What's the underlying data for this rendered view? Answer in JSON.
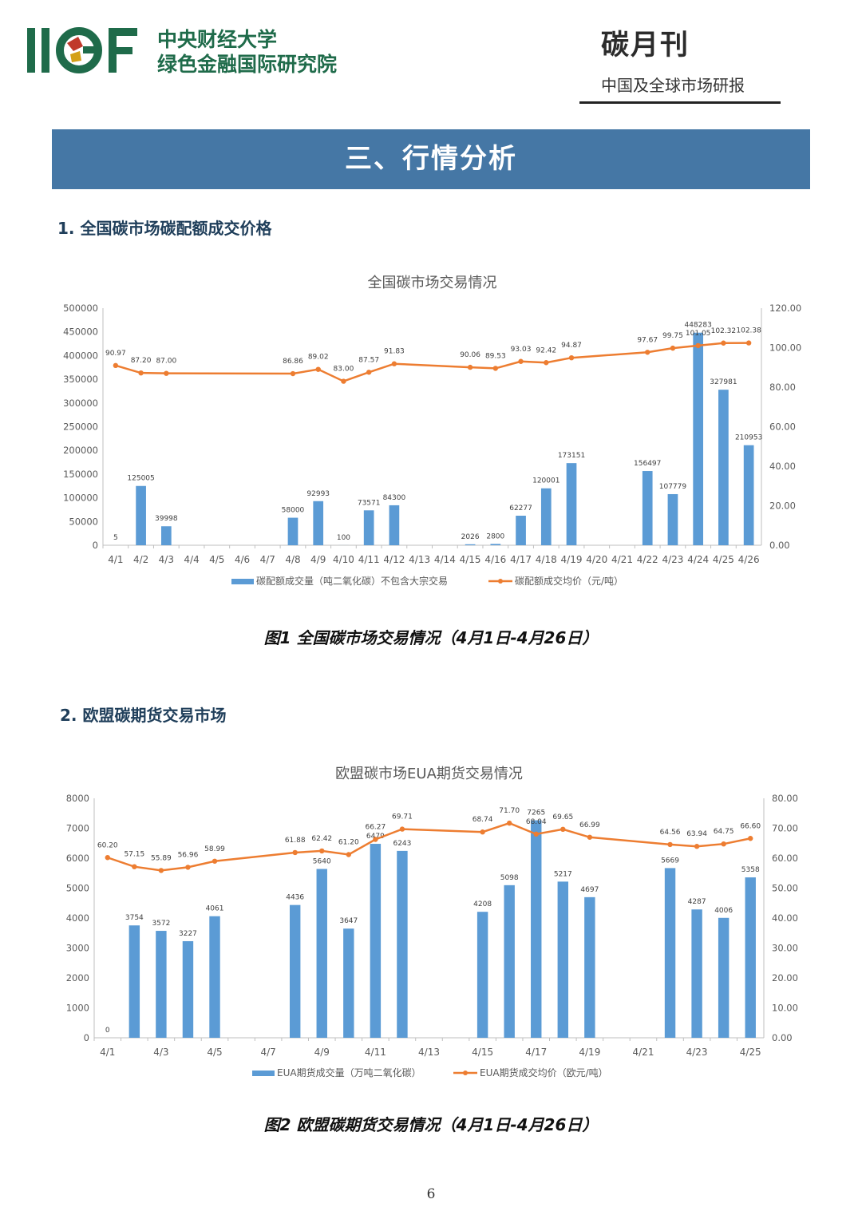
{
  "header": {
    "logo_text": "IIGF",
    "org_line1": "中央财经大学",
    "org_line2": "绿色金融国际研究院",
    "pub_title": "碳月刊",
    "pub_subtitle": "中国及全球市场研报"
  },
  "banner": {
    "title": "三、行情分析"
  },
  "section1": {
    "heading": "1. 全国碳市场碳配额成交价格",
    "caption": "图1 全国碳市场交易情况（4月1日-4月26日）"
  },
  "section2": {
    "heading": "2. 欧盟碳期货交易市场",
    "caption": "图2 欧盟碳期货交易情况（4月1日-4月26日）"
  },
  "page_number": "6",
  "colors": {
    "bar": "#5b9bd5",
    "line": "#ed7d31",
    "banner": "#4577a5"
  },
  "chart_data": [
    {
      "type": "bar",
      "title": "全国碳市场交易情况",
      "categories": [
        "4/1",
        "4/2",
        "4/3",
        "4/4",
        "4/5",
        "4/6",
        "4/7",
        "4/8",
        "4/9",
        "4/10",
        "4/11",
        "4/12",
        "4/13",
        "4/14",
        "4/15",
        "4/16",
        "4/17",
        "4/18",
        "4/19",
        "4/20",
        "4/21",
        "4/22",
        "4/23",
        "4/24",
        "4/25",
        "4/26"
      ],
      "ylim": [
        0,
        500000
      ],
      "y_ticks": [
        "0",
        "50000",
        "100000",
        "150000",
        "200000",
        "250000",
        "300000",
        "350000",
        "400000",
        "450000",
        "500000"
      ],
      "y2lim": [
        0,
        120
      ],
      "y2_ticks": [
        "0.00",
        "20.00",
        "40.00",
        "60.00",
        "80.00",
        "100.00",
        "120.00"
      ],
      "legend_position": "bottom",
      "grid": false,
      "series": [
        {
          "name": "碳配额成交量（吨二氧化碳）不包含大宗交易",
          "type": "bar",
          "axis": "left",
          "values": [
            5,
            125005,
            39998,
            null,
            null,
            null,
            null,
            58000,
            92993,
            100,
            73571,
            84300,
            null,
            null,
            2026,
            2800,
            62277,
            120001,
            173151,
            null,
            null,
            156497,
            107779,
            448283,
            327981,
            210953
          ],
          "labels": [
            "5",
            "125005",
            "39998",
            null,
            null,
            null,
            null,
            "58000",
            "92993",
            "100",
            "73571",
            "84300",
            null,
            null,
            "2026",
            "2800",
            "62277",
            "120001",
            "173151",
            null,
            null,
            "156497",
            "107779",
            "448283",
            "327981",
            "210953"
          ]
        },
        {
          "name": "碳配额成交均价（元/吨）",
          "type": "line",
          "axis": "right",
          "values": [
            90.97,
            87.2,
            87.0,
            null,
            null,
            null,
            null,
            86.86,
            89.02,
            83.0,
            87.57,
            91.83,
            null,
            null,
            90.06,
            89.53,
            93.03,
            92.42,
            94.87,
            null,
            null,
            97.67,
            99.75,
            101.05,
            102.32,
            102.38
          ],
          "labels": [
            "90.97",
            "87.20",
            "87.00",
            null,
            null,
            null,
            null,
            "86.86",
            "89.02",
            "83.00",
            "87.57",
            "91.83",
            null,
            null,
            "90.06",
            "89.53",
            "93.03",
            "92.42",
            "94.87",
            null,
            null,
            "97.67",
            "99.75",
            "101.05",
            "102.32",
            "102.38"
          ]
        }
      ]
    },
    {
      "type": "bar",
      "title": "欧盟碳市场EUA期货交易情况",
      "categories": [
        "4/1",
        "4/2",
        "4/3",
        "4/4",
        "4/5",
        "4/6",
        "4/7",
        "4/8",
        "4/9",
        "4/10",
        "4/11",
        "4/12",
        "4/13",
        "4/14",
        "4/15",
        "4/16",
        "4/17",
        "4/18",
        "4/19",
        "4/20",
        "4/21",
        "4/22",
        "4/23",
        "4/24",
        "4/25"
      ],
      "x_tick_labels": [
        "4/1",
        "",
        "4/3",
        "",
        "4/5",
        "",
        "4/7",
        "",
        "4/9",
        "",
        "4/11",
        "",
        "4/13",
        "",
        "4/15",
        "",
        "4/17",
        "",
        "4/19",
        "",
        "4/21",
        "",
        "4/23",
        "",
        "4/25"
      ],
      "ylim": [
        0,
        8000
      ],
      "y_ticks": [
        "0",
        "1000",
        "2000",
        "3000",
        "4000",
        "5000",
        "6000",
        "7000",
        "8000"
      ],
      "y2lim": [
        0,
        80
      ],
      "y2_ticks": [
        "0.00",
        "10.00",
        "20.00",
        "30.00",
        "40.00",
        "50.00",
        "60.00",
        "70.00",
        "80.00"
      ],
      "legend_position": "bottom",
      "grid": false,
      "series": [
        {
          "name": "EUA期货成交量（万吨二氧化碳）",
          "type": "bar",
          "axis": "left",
          "values": [
            0,
            3754,
            3572,
            3227,
            4061,
            null,
            null,
            4436,
            5640,
            3647,
            6479,
            6243,
            null,
            null,
            4208,
            5098,
            7265,
            5217,
            4697,
            null,
            null,
            5669,
            4287,
            4006,
            5358
          ],
          "labels": [
            "0",
            "3754",
            "3572",
            "3227",
            "4061",
            null,
            null,
            "4436",
            "5640",
            "3647",
            "6479",
            "6243",
            null,
            null,
            "4208",
            "5098",
            "7265",
            "5217",
            "4697",
            null,
            null,
            "5669",
            "4287",
            "4006",
            "5358"
          ]
        },
        {
          "name": "EUA期货成交均价（欧元/吨）",
          "type": "line",
          "axis": "right",
          "values": [
            60.2,
            57.15,
            55.89,
            56.96,
            58.99,
            null,
            null,
            61.88,
            62.42,
            61.2,
            66.27,
            69.71,
            null,
            null,
            68.74,
            71.7,
            68.04,
            69.65,
            66.99,
            null,
            null,
            64.56,
            63.94,
            64.75,
            66.6
          ],
          "labels": [
            "60.20",
            "57.15",
            "55.89",
            "56.96",
            "58.99",
            null,
            null,
            "61.88",
            "62.42",
            "61.20",
            "66.27",
            "69.71",
            null,
            null,
            "68.74",
            "71.70",
            "68.04",
            "69.65",
            "66.99",
            null,
            null,
            "64.56",
            "63.94",
            "64.75",
            "66.60"
          ]
        }
      ]
    }
  ]
}
